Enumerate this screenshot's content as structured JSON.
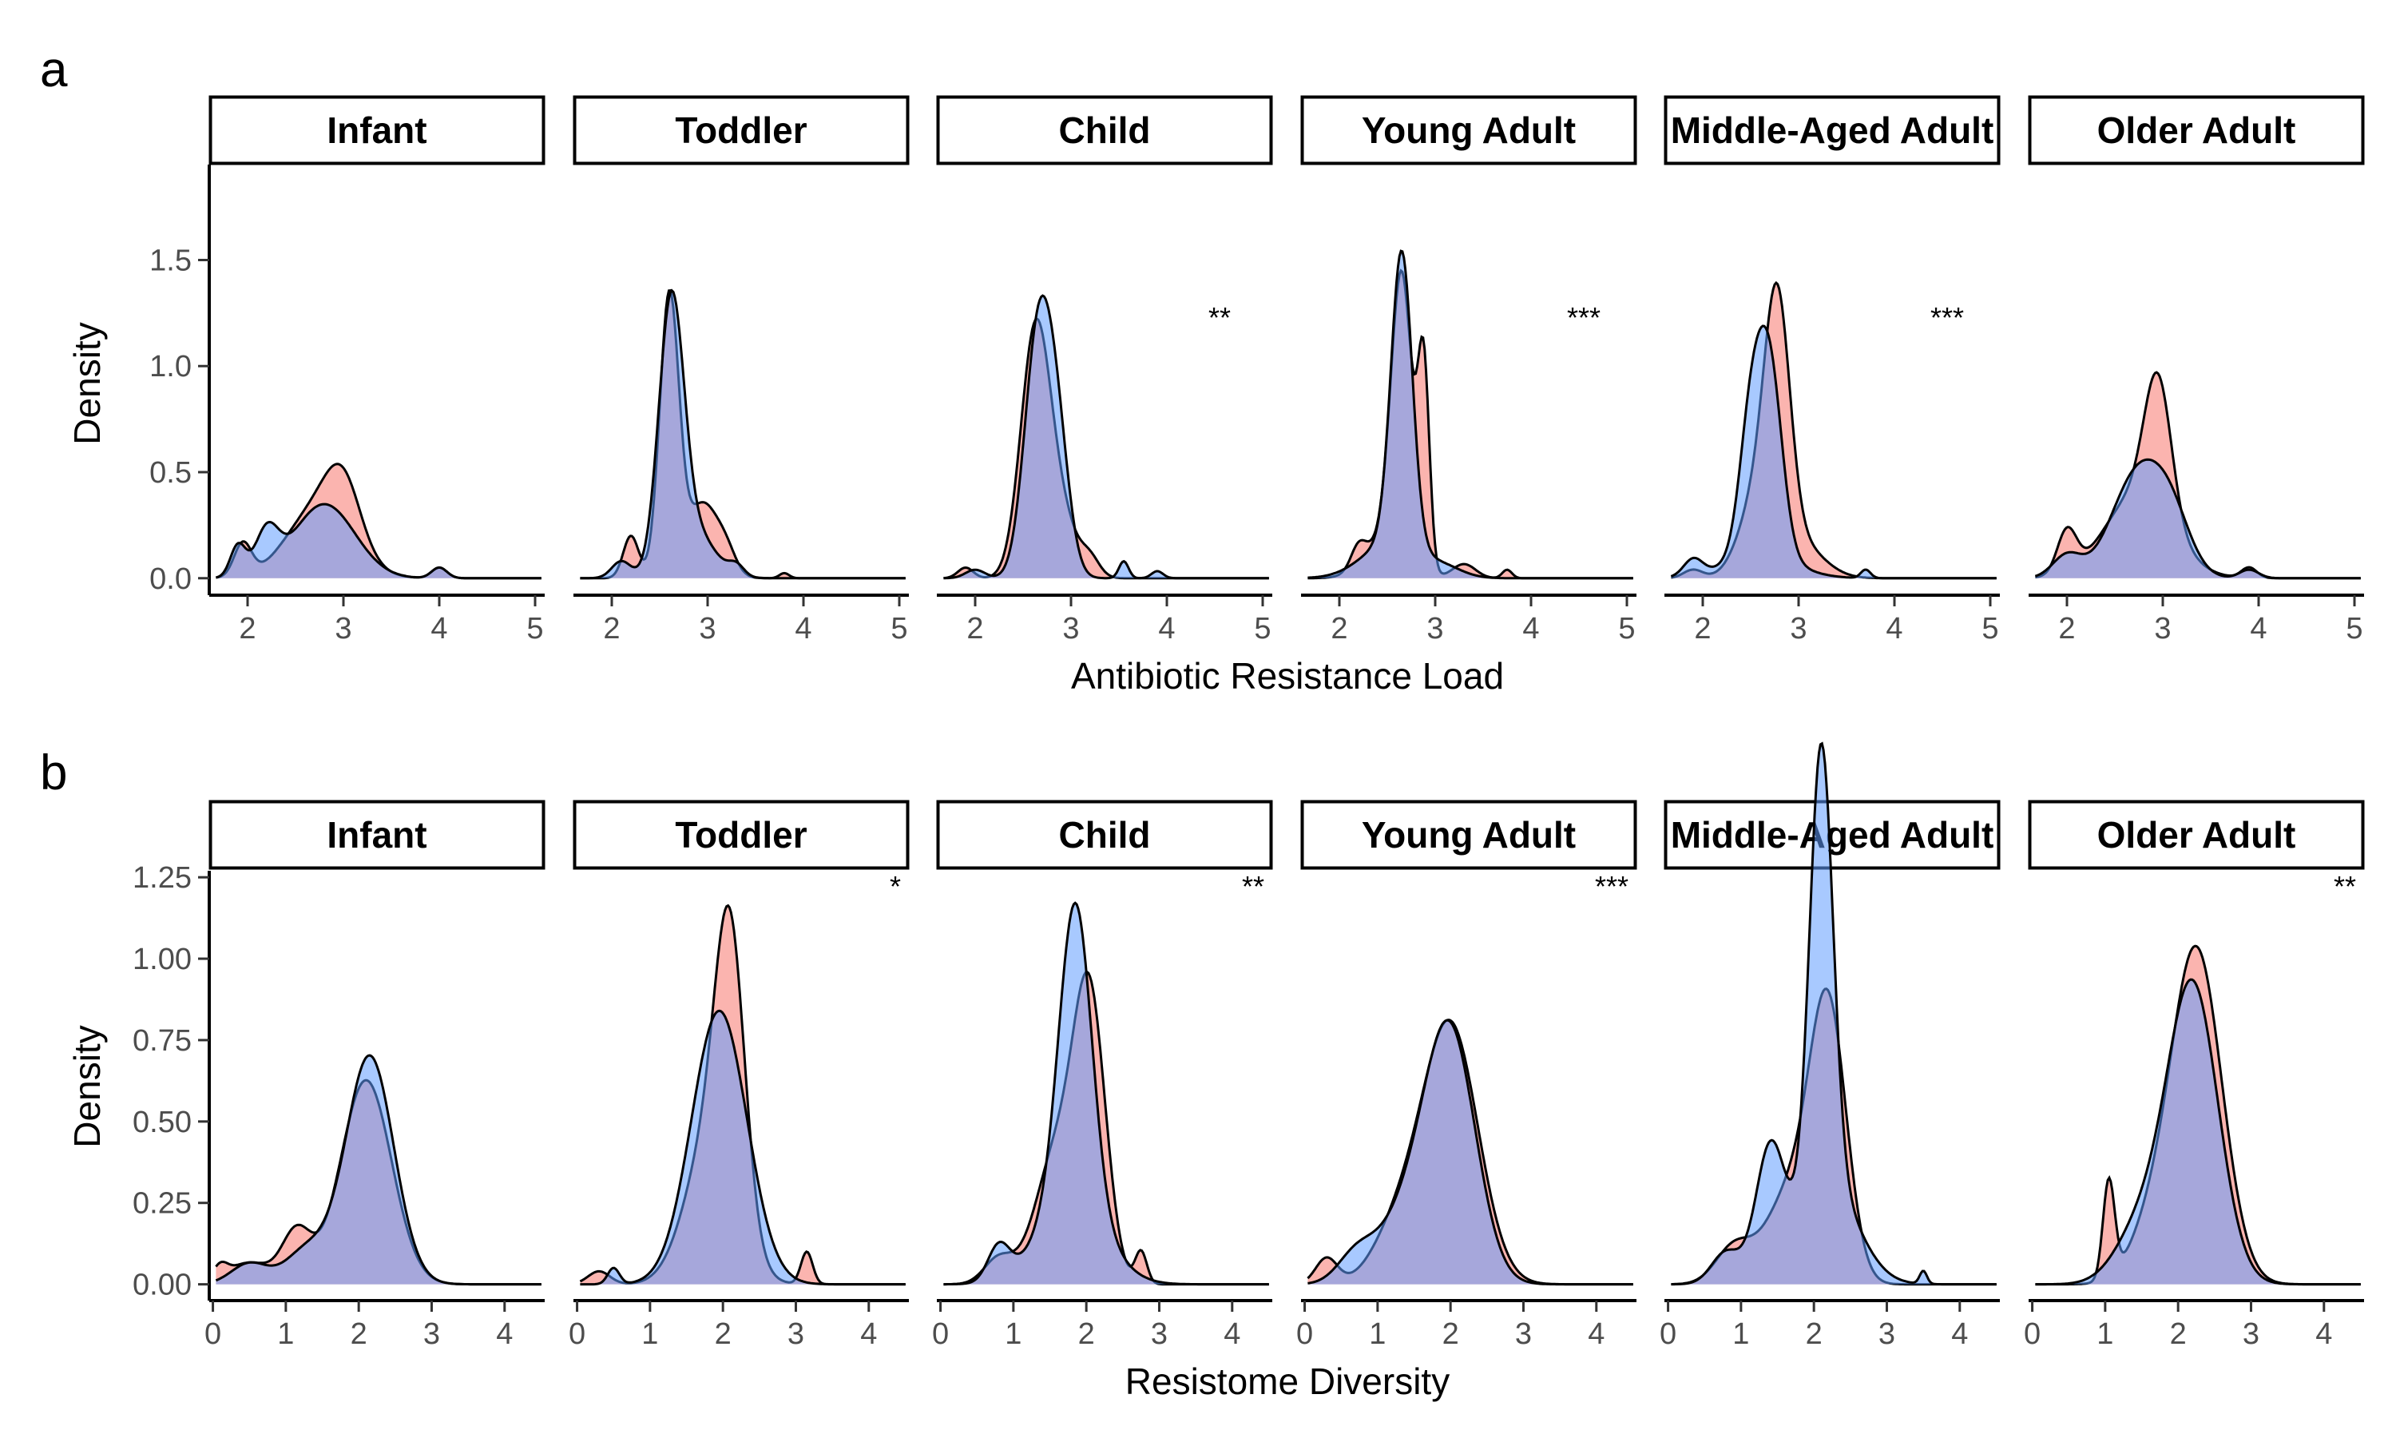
{
  "colors": {
    "series_a": "#F8766D",
    "series_b": "#619CFF",
    "outline": "#000000"
  },
  "chart_data": [
    {
      "panel_label": "a",
      "type": "area",
      "xlabel": "Antibiotic Resistance Load",
      "ylabel": "Density",
      "xlim": [
        1.6,
        5.1
      ],
      "ylim": [
        -0.08,
        1.95
      ],
      "xticks": [
        2,
        3,
        4,
        5
      ],
      "yticks": [
        0.0,
        0.5,
        1.0,
        1.5
      ],
      "yticklabels": [
        "0.0",
        "0.5",
        "1.0",
        "1.5"
      ],
      "grid": false,
      "facets": [
        {
          "label": "Infant",
          "sig": "",
          "series": [
            {
              "color": "#F8766D",
              "components": [
                [
                  0.28,
                  2.75,
                  0.33
                ],
                [
                  0.12,
                  3.0,
                  0.18
                ],
                [
                  0.035,
                  1.95,
                  0.09
                ],
                [
                  0.01,
                  4.0,
                  0.08
                ]
              ]
            },
            {
              "color": "#619CFF",
              "components": [
                [
                  0.28,
                  2.8,
                  0.32
                ],
                [
                  0.06,
                  2.2,
                  0.12
                ],
                [
                  0.03,
                  1.9,
                  0.08
                ],
                [
                  0.01,
                  4.0,
                  0.08
                ]
              ]
            }
          ]
        },
        {
          "label": "Toddler",
          "sig": "",
          "series": [
            {
              "color": "#F8766D",
              "components": [
                [
                  0.33,
                  2.6,
                  0.1
                ],
                [
                  0.15,
                  2.95,
                  0.17
                ],
                [
                  0.04,
                  2.2,
                  0.08
                ],
                [
                  0.02,
                  3.2,
                  0.1
                ],
                [
                  0.003,
                  3.8,
                  0.05
                ]
              ]
            },
            {
              "color": "#619CFF",
              "components": [
                [
                  0.4,
                  2.62,
                  0.13
                ],
                [
                  0.12,
                  2.85,
                  0.22
                ],
                [
                  0.02,
                  2.1,
                  0.1
                ],
                [
                  0.01,
                  3.3,
                  0.08
                ]
              ]
            }
          ]
        },
        {
          "label": "Child",
          "sig": "**",
          "series": [
            {
              "color": "#F8766D",
              "components": [
                [
                  0.4,
                  2.62,
                  0.15
                ],
                [
                  0.15,
                  2.85,
                  0.18
                ],
                [
                  0.01,
                  1.9,
                  0.08
                ],
                [
                  0.02,
                  3.2,
                  0.1
                ]
              ]
            },
            {
              "color": "#619CFF",
              "components": [
                [
                  0.38,
                  2.65,
                  0.14
                ],
                [
                  0.2,
                  2.85,
                  0.13
                ],
                [
                  0.01,
                  2.0,
                  0.1
                ],
                [
                  0.01,
                  3.55,
                  0.05
                ],
                [
                  0.005,
                  3.9,
                  0.06
                ]
              ]
            }
          ]
        },
        {
          "label": "Young Adult",
          "sig": "***",
          "series": [
            {
              "color": "#F8766D",
              "components": [
                [
                  0.36,
                  2.65,
                  0.11
                ],
                [
                  0.14,
                  2.88,
                  0.06
                ],
                [
                  0.1,
                  2.5,
                  0.22
                ],
                [
                  0.02,
                  2.2,
                  0.08
                ],
                [
                  0.02,
                  3.3,
                  0.12
                ],
                [
                  0.005,
                  3.75,
                  0.05
                ]
              ]
            },
            {
              "color": "#619CFF",
              "components": [
                [
                  0.38,
                  2.65,
                  0.11
                ],
                [
                  0.13,
                  2.55,
                  0.3
                ],
                [
                  0.02,
                  3.1,
                  0.2
                ]
              ]
            }
          ]
        },
        {
          "label": "Middle-Aged Adult",
          "sig": "***",
          "series": [
            {
              "color": "#F8766D",
              "components": [
                [
                  0.33,
                  2.78,
                  0.13
                ],
                [
                  0.2,
                  2.6,
                  0.2
                ],
                [
                  0.1,
                  3.0,
                  0.25
                ],
                [
                  0.01,
                  1.9,
                  0.1
                ]
              ]
            },
            {
              "color": "#619CFF",
              "components": [
                [
                  0.28,
                  2.7,
                  0.13
                ],
                [
                  0.18,
                  2.5,
                  0.12
                ],
                [
                  0.1,
                  2.6,
                  0.35
                ],
                [
                  0.02,
                  1.9,
                  0.1
                ],
                [
                  0.005,
                  3.7,
                  0.05
                ]
              ]
            }
          ]
        },
        {
          "label": "Older Adult",
          "sig": "",
          "series": [
            {
              "color": "#F8766D",
              "components": [
                [
                  0.22,
                  2.95,
                  0.14
                ],
                [
                  0.35,
                  2.75,
                  0.35
                ],
                [
                  0.05,
                  2.0,
                  0.1
                ],
                [
                  0.01,
                  3.9,
                  0.08
                ]
              ]
            },
            {
              "color": "#619CFF",
              "components": [
                [
                  0.35,
                  2.75,
                  0.28
                ],
                [
                  0.1,
                  3.1,
                  0.2
                ],
                [
                  0.04,
                  2.0,
                  0.15
                ],
                [
                  0.01,
                  3.9,
                  0.1
                ]
              ]
            }
          ]
        }
      ]
    },
    {
      "panel_label": "b",
      "type": "area",
      "xlabel": "Resistome Diversity",
      "ylabel": "Density",
      "xlim": [
        -0.05,
        4.55
      ],
      "ylim": [
        -0.05,
        1.27
      ],
      "xticks": [
        0,
        1,
        2,
        3,
        4
      ],
      "yticks": [
        0.0,
        0.25,
        0.5,
        0.75,
        1.0,
        1.25
      ],
      "yticklabels": [
        "0.00",
        "0.25",
        "0.50",
        "0.75",
        "1.00",
        "1.25"
      ],
      "grid": false,
      "facets": [
        {
          "label": "Infant",
          "sig": "",
          "series": [
            {
              "color": "#F8766D",
              "components": [
                [
                  0.55,
                  2.1,
                  0.35
                ],
                [
                  0.08,
                  1.15,
                  0.2
                ],
                [
                  0.05,
                  0.5,
                  0.3
                ],
                [
                  0.01,
                  0.1,
                  0.1
                ]
              ]
            },
            {
              "color": "#619CFF",
              "components": [
                [
                  0.58,
                  2.15,
                  0.33
                ],
                [
                  0.08,
                  1.3,
                  0.3
                ],
                [
                  0.04,
                  0.5,
                  0.25
                ]
              ]
            }
          ]
        },
        {
          "label": "Toddler",
          "sig": "*",
          "series": [
            {
              "color": "#F8766D",
              "components": [
                [
                  0.4,
                  2.1,
                  0.2
                ],
                [
                  0.4,
                  1.85,
                  0.35
                ],
                [
                  0.02,
                  3.15,
                  0.08
                ],
                [
                  0.015,
                  0.3,
                  0.15
                ]
              ]
            },
            {
              "color": "#619CFF",
              "components": [
                [
                  0.8,
                  1.95,
                  0.38
                ],
                [
                  0.01,
                  0.5,
                  0.08
                ]
              ]
            }
          ]
        },
        {
          "label": "Child",
          "sig": "**",
          "series": [
            {
              "color": "#F8766D",
              "components": [
                [
                  0.45,
                  2.05,
                  0.22
                ],
                [
                  0.3,
                  1.6,
                  0.3
                ],
                [
                  0.04,
                  0.8,
                  0.2
                ],
                [
                  0.02,
                  2.75,
                  0.08
                ]
              ]
            },
            {
              "color": "#619CFF",
              "components": [
                [
                  0.5,
                  1.85,
                  0.22
                ],
                [
                  0.3,
                  1.8,
                  0.45
                ],
                [
                  0.04,
                  0.8,
                  0.15
                ]
              ]
            }
          ]
        },
        {
          "label": "Young Adult",
          "sig": "***",
          "series": [
            {
              "color": "#F8766D",
              "components": [
                [
                  0.75,
                  2.0,
                  0.38
                ],
                [
                  0.15,
                  1.3,
                  0.35
                ],
                [
                  0.03,
                  0.3,
                  0.15
                ]
              ]
            },
            {
              "color": "#619CFF",
              "components": [
                [
                  0.65,
                  2.0,
                  0.35
                ],
                [
                  0.2,
                  1.4,
                  0.4
                ],
                [
                  0.05,
                  0.7,
                  0.25
                ]
              ]
            }
          ]
        },
        {
          "label": "Middle-Aged Adult",
          "sig": "",
          "series": [
            {
              "color": "#F8766D",
              "components": [
                [
                  0.5,
                  2.2,
                  0.25
                ],
                [
                  0.25,
                  1.7,
                  0.35
                ],
                [
                  0.07,
                  0.9,
                  0.25
                ]
              ]
            },
            {
              "color": "#619CFF",
              "components": [
                [
                  0.55,
                  2.1,
                  0.16
                ],
                [
                  0.3,
                  2.2,
                  0.4
                ],
                [
                  0.2,
                  1.4,
                  0.2
                ],
                [
                  0.05,
                  0.8,
                  0.2
                ],
                [
                  0.005,
                  3.5,
                  0.05
                ]
              ]
            }
          ]
        },
        {
          "label": "Older Adult",
          "sig": "**",
          "series": [
            {
              "color": "#F8766D",
              "components": [
                [
                  0.9,
                  2.25,
                  0.35
                ],
                [
                  0.06,
                  1.05,
                  0.08
                ],
                [
                  0.1,
                  1.6,
                  0.3
                ]
              ]
            },
            {
              "color": "#619CFF",
              "components": [
                [
                  0.8,
                  2.2,
                  0.35
                ],
                [
                  0.15,
                  1.5,
                  0.35
                ]
              ]
            }
          ]
        }
      ]
    }
  ]
}
